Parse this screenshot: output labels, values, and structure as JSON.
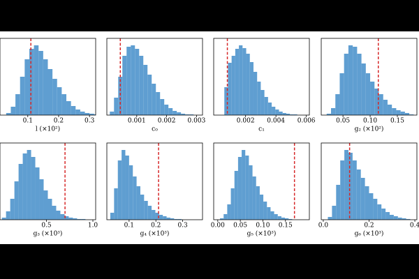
{
  "chart_data": [
    {
      "type": "histogram",
      "xlabel": "l (×10²)",
      "color": "#5f9ed1",
      "bins": [
        0.03,
        0.045,
        0.06,
        0.075,
        0.09,
        0.105,
        0.12,
        0.135,
        0.15,
        0.165,
        0.18,
        0.195,
        0.21,
        0.225,
        0.24,
        0.255,
        0.27,
        0.285,
        0.3,
        0.315,
        0.33
      ],
      "counts": [
        3,
        12,
        30,
        55,
        80,
        95,
        100,
        92,
        80,
        66,
        52,
        40,
        30,
        20,
        13,
        8,
        5,
        3,
        2,
        1
      ],
      "xlim": [
        0.01,
        0.32
      ],
      "xticks": [
        0.1,
        0.2,
        0.3
      ],
      "ylim": [
        0,
        110
      ],
      "reference_line": {
        "value": 0.11,
        "color": "#d62728"
      }
    },
    {
      "type": "histogram",
      "xlabel": "c₀",
      "color": "#5f9ed1",
      "bins": [
        0.0001,
        0.00024,
        0.00038,
        0.00052,
        0.00066,
        0.0008,
        0.00094,
        0.00108,
        0.00122,
        0.00136,
        0.0015,
        0.00164,
        0.00178,
        0.00192,
        0.00206,
        0.0022,
        0.00234,
        0.00248,
        0.00262,
        0.00276,
        0.0029
      ],
      "counts": [
        5,
        25,
        55,
        85,
        98,
        100,
        95,
        85,
        72,
        58,
        45,
        33,
        23,
        15,
        10,
        6,
        4,
        2,
        1,
        1
      ],
      "xlim": [
        0,
        0.0032
      ],
      "xticks": [
        0.001,
        0.002,
        0.003
      ],
      "ylim": [
        0,
        110
      ],
      "reference_line": {
        "value": 0.00045,
        "color": "#d62728"
      }
    },
    {
      "type": "histogram",
      "xlabel": "c₁",
      "color": "#5f9ed1",
      "bins": [
        0.0006,
        0.00084,
        0.00108,
        0.00132,
        0.00156,
        0.0018,
        0.00204,
        0.00228,
        0.00252,
        0.00276,
        0.003,
        0.00324,
        0.00348,
        0.00372,
        0.00396,
        0.0042,
        0.00444,
        0.00468,
        0.00492,
        0.00516,
        0.0054
      ],
      "counts": [
        40,
        75,
        85,
        95,
        100,
        96,
        88,
        76,
        62,
        48,
        36,
        26,
        18,
        12,
        8,
        5,
        3,
        2,
        1,
        1
      ],
      "xlim": [
        -0.0001,
        0.0062
      ],
      "xticks": [
        0.002,
        0.004,
        0.006
      ],
      "ylim": [
        0,
        110
      ],
      "reference_line": {
        "value": 0.0008,
        "color": "#d62728"
      }
    },
    {
      "type": "histogram",
      "xlabel": "g₂ (×10²)",
      "color": "#5f9ed1",
      "bins": [
        0.02,
        0.028,
        0.036,
        0.044,
        0.052,
        0.06,
        0.068,
        0.076,
        0.084,
        0.092,
        0.1,
        0.108,
        0.116,
        0.124,
        0.132,
        0.14,
        0.148,
        0.156,
        0.164,
        0.172,
        0.18
      ],
      "counts": [
        2,
        10,
        30,
        60,
        88,
        100,
        98,
        88,
        74,
        60,
        48,
        38,
        30,
        22,
        15,
        10,
        7,
        5,
        3,
        1
      ],
      "xlim": [
        0.01,
        0.186
      ],
      "xticks": [
        0.05,
        {
          "value": 0.1,
          "label": "0.10"
        },
        0.15
      ],
      "ylim": [
        0,
        110
      ],
      "reference_line": {
        "value": 0.115,
        "color": "#d62728"
      }
    },
    {
      "type": "histogram",
      "xlabel": "g₃ (×10³)",
      "color": "#5f9ed1",
      "bins": [
        0.02,
        0.065,
        0.11,
        0.155,
        0.2,
        0.245,
        0.29,
        0.335,
        0.38,
        0.425,
        0.47,
        0.515,
        0.56,
        0.605,
        0.65,
        0.695,
        0.74,
        0.785,
        0.83,
        0.875,
        0.92
      ],
      "counts": [
        3,
        12,
        30,
        55,
        80,
        95,
        100,
        90,
        75,
        58,
        42,
        30,
        20,
        13,
        8,
        5,
        3,
        2,
        1,
        1
      ],
      "xlim": [
        0,
        1.03
      ],
      "xticks": [
        0.5,
        {
          "value": 1,
          "label": "1.0"
        }
      ],
      "ylim": [
        0,
        110
      ],
      "reference_line": {
        "value": 0.7,
        "color": "#d62728"
      }
    },
    {
      "type": "histogram",
      "xlabel": "g₄ (×10³)",
      "color": "#5f9ed1",
      "bins": [
        0.03,
        0.044,
        0.058,
        0.072,
        0.086,
        0.1,
        0.114,
        0.128,
        0.142,
        0.156,
        0.17,
        0.184,
        0.198,
        0.212,
        0.226,
        0.24,
        0.254,
        0.268,
        0.282,
        0.296,
        0.31
      ],
      "counts": [
        10,
        45,
        85,
        100,
        92,
        78,
        62,
        48,
        36,
        27,
        20,
        14,
        10,
        7,
        5,
        3,
        2,
        1,
        1,
        0
      ],
      "xlim": [
        0.017,
        0.374
      ],
      "xticks": [
        0.1,
        0.2,
        0.3
      ],
      "ylim": [
        0,
        110
      ],
      "reference_line": {
        "value": 0.21,
        "color": "#d62728"
      }
    },
    {
      "type": "histogram",
      "xlabel": "g₅ (×10³)",
      "color": "#5f9ed1",
      "bins": [
        0.005,
        0.013,
        0.021,
        0.029,
        0.037,
        0.045,
        0.053,
        0.061,
        0.069,
        0.077,
        0.085,
        0.093,
        0.101,
        0.109,
        0.117,
        0.125,
        0.133,
        0.141,
        0.149,
        0.157,
        0.165
      ],
      "counts": [
        2,
        8,
        22,
        45,
        70,
        90,
        100,
        92,
        78,
        62,
        48,
        36,
        26,
        18,
        12,
        8,
        5,
        3,
        2,
        1
      ],
      "xlim": [
        -0.009,
        0.203
      ],
      "xticks": [
        {
          "value": 0,
          "label": "0.00"
        },
        0.05,
        {
          "value": 0.1,
          "label": "0.10"
        },
        0.15
      ],
      "ylim": [
        0,
        110
      ],
      "reference_line": {
        "value": 0.17,
        "color": "#d62728"
      }
    },
    {
      "type": "histogram",
      "xlabel": "g₆ (×10³)",
      "color": "#5f9ed1",
      "bins": [
        0.02,
        0.038,
        0.056,
        0.074,
        0.092,
        0.11,
        0.128,
        0.146,
        0.164,
        0.182,
        0.2,
        0.218,
        0.236,
        0.254,
        0.272,
        0.29,
        0.308,
        0.326,
        0.344,
        0.362,
        0.38
      ],
      "counts": [
        4,
        20,
        50,
        85,
        100,
        96,
        85,
        72,
        60,
        48,
        38,
        30,
        22,
        16,
        11,
        7,
        5,
        3,
        2,
        1
      ],
      "xlim": [
        -0.009,
        0.409
      ],
      "xticks": [
        {
          "value": 0,
          "label": "0.0"
        },
        0.2,
        0.4
      ],
      "ylim": [
        0,
        110
      ],
      "reference_line": {
        "value": 0.115,
        "color": "#d62728"
      }
    }
  ]
}
